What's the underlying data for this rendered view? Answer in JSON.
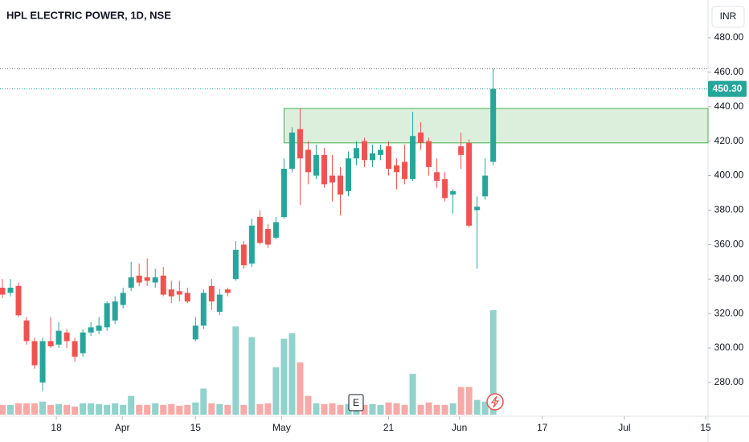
{
  "chart_data": {
    "type": "candlestick",
    "title": "HPL ELECTRIC POWER, 1D, NSE",
    "currency": "INR",
    "up_color": "#26a69a",
    "down_color": "#ef5350",
    "open": [
      335,
      332,
      336,
      316,
      304,
      280,
      304,
      302,
      309,
      304,
      297,
      309,
      310,
      312,
      316,
      325,
      335,
      342,
      341,
      338,
      342,
      334,
      333,
      332,
      305,
      313,
      336,
      321,
      334,
      340,
      360,
      349,
      376,
      369,
      364,
      376,
      404,
      427,
      415,
      400,
      412,
      400,
      400,
      391,
      410,
      420,
      409,
      412,
      417,
      406,
      408,
      398,
      425,
      420,
      402,
      398,
      389,
      417,
      419,
      380,
      388,
      408
    ],
    "high": [
      340,
      340,
      338,
      318,
      306,
      306,
      318,
      315,
      311,
      306,
      311,
      315,
      318,
      327,
      330,
      335,
      350,
      349,
      352,
      346,
      347,
      339,
      339,
      335,
      318,
      334,
      340,
      334,
      335,
      362,
      362,
      375,
      380,
      372,
      376,
      410,
      428,
      439,
      420,
      418,
      416,
      412,
      405,
      414,
      420,
      422,
      418,
      418,
      420,
      410,
      418,
      437,
      431,
      422,
      410,
      402,
      392,
      425,
      421,
      388,
      410,
      462
    ],
    "low": [
      329,
      330,
      318,
      302,
      288,
      275,
      300,
      300,
      300,
      292,
      295,
      307,
      308,
      310,
      314,
      323,
      333,
      336,
      336,
      335,
      330,
      326,
      327,
      326,
      304,
      311,
      322,
      319,
      330,
      339,
      346,
      347,
      360,
      358,
      363,
      375,
      402,
      383,
      395,
      398,
      393,
      385,
      377,
      388,
      406,
      405,
      405,
      409,
      400,
      392,
      395,
      397,
      415,
      400,
      393,
      385,
      378,
      404,
      370,
      346,
      386,
      406
    ],
    "close": [
      331,
      335,
      319,
      304,
      290,
      304,
      301,
      310,
      304,
      295,
      309,
      312,
      313,
      326,
      327,
      332,
      341,
      338,
      339,
      341,
      331,
      330,
      331,
      327,
      313,
      332,
      327,
      331,
      332,
      357,
      348,
      371,
      361,
      360,
      373,
      404,
      425,
      410,
      402,
      412,
      395,
      396,
      389,
      410,
      416,
      409,
      413,
      415,
      404,
      402,
      398,
      423,
      419,
      405,
      397,
      387,
      391,
      412,
      371,
      382,
      400,
      450.3
    ],
    "volume": [
      12,
      12,
      14,
      14,
      14,
      16,
      12,
      13,
      12,
      10,
      14,
      14,
      13,
      12,
      14,
      12,
      23,
      12,
      12,
      14,
      12,
      13,
      11,
      12,
      15,
      32,
      14,
      13,
      12,
      108,
      12,
      95,
      13,
      14,
      58,
      93,
      100,
      64,
      23,
      14,
      13,
      14,
      12,
      13,
      12,
      12,
      13,
      12,
      15,
      14,
      12,
      50,
      12,
      15,
      12,
      12,
      14,
      34,
      34,
      18,
      16,
      128
    ],
    "last_label": "450.30",
    "earnings_marker": "E",
    "zone": {
      "start": 35,
      "low": 419,
      "high": 439,
      "color": "#4caf50"
    },
    "xlim": [
      -0.3,
      87.7
    ],
    "xticks": [
      {
        "value": 6.7,
        "label": "18"
      },
      {
        "value": 14.9,
        "label": "Apr"
      },
      {
        "value": 24,
        "label": "15"
      },
      {
        "value": 34.7,
        "label": "May"
      },
      {
        "value": 48,
        "label": "21"
      },
      {
        "value": 56.8,
        "label": "Jun"
      },
      {
        "value": 67.1,
        "label": "17"
      },
      {
        "value": 77.3,
        "label": "Jul"
      },
      {
        "value": 87.4,
        "label": "15"
      }
    ],
    "ylim": [
      260.4,
      501.9
    ],
    "yticks": [
      {
        "value": 280,
        "label": "280.00"
      },
      {
        "value": 300,
        "label": "300.00"
      },
      {
        "value": 320,
        "label": "320.00"
      },
      {
        "value": 340,
        "label": "340.00"
      },
      {
        "value": 360,
        "label": "360.00"
      },
      {
        "value": 380,
        "label": "380.00"
      },
      {
        "value": 400,
        "label": "400.00"
      },
      {
        "value": 420,
        "label": "420.00"
      },
      {
        "value": 440,
        "label": "440.00"
      },
      {
        "value": 460,
        "label": "460.00"
      },
      {
        "value": 480,
        "label": "480.00"
      }
    ]
  }
}
